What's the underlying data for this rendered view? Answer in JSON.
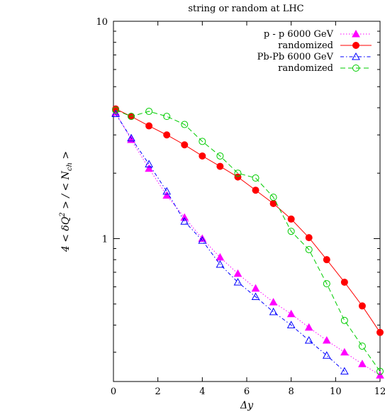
{
  "chart_data": {
    "type": "line",
    "title": "string or random at LHC",
    "xlabel": "Δy",
    "ylabel": "4 < δQ² > / < N_ch >",
    "ylabel_parts": {
      "pre": "4 < δQ",
      "sup": "2",
      "mid": " > / < N",
      "sub": "ch",
      "post": " >"
    },
    "xlim": [
      0,
      12
    ],
    "ylim": [
      0.22,
      10
    ],
    "yscale": "log",
    "xticks": [
      "0",
      "2",
      "4",
      "6",
      "8",
      "10",
      "12"
    ],
    "xtick_values": [
      0,
      2,
      4,
      6,
      8,
      10,
      12
    ],
    "yticks": [
      "1",
      "10"
    ],
    "ytick_values": [
      1,
      10
    ],
    "legend_position": "top-right",
    "series": [
      {
        "name": "p - p 6000 GeV",
        "color": "#ff00ff",
        "marker": "triangle-filled",
        "line": "dotted",
        "x": [
          0.1,
          0.8,
          1.6,
          2.4,
          3.2,
          4.0,
          4.8,
          5.6,
          6.4,
          7.2,
          8.0,
          8.8,
          9.6,
          10.4,
          11.2,
          12.0
        ],
        "y": [
          3.8,
          2.85,
          2.1,
          1.58,
          1.25,
          1.0,
          0.82,
          0.69,
          0.59,
          0.51,
          0.45,
          0.39,
          0.34,
          0.3,
          0.265,
          0.235
        ]
      },
      {
        "name": "randomized",
        "color": "#ff0000",
        "marker": "circle-filled",
        "line": "solid",
        "x": [
          0.1,
          0.8,
          1.6,
          2.4,
          3.2,
          4.0,
          4.8,
          5.6,
          6.4,
          7.2,
          8.0,
          8.8,
          9.6,
          10.4,
          11.2,
          12.0
        ],
        "y": [
          3.95,
          3.65,
          3.3,
          3.0,
          2.7,
          2.4,
          2.15,
          1.92,
          1.67,
          1.45,
          1.23,
          1.01,
          0.8,
          0.63,
          0.49,
          0.37
        ]
      },
      {
        "name": "Pb-Pb 6000 GeV",
        "color": "#0000ff",
        "marker": "triangle-open",
        "line": "dash-dot",
        "x": [
          0.1,
          0.8,
          1.6,
          2.4,
          3.2,
          4.0,
          4.8,
          5.6,
          6.4,
          7.2,
          8.0,
          8.8,
          9.6,
          10.4
        ],
        "y": [
          3.75,
          2.9,
          2.2,
          1.65,
          1.2,
          0.98,
          0.76,
          0.63,
          0.54,
          0.46,
          0.4,
          0.34,
          0.29,
          0.245
        ]
      },
      {
        "name": "randomized",
        "color": "#00cc00",
        "marker": "circle-open",
        "line": "dashed",
        "x": [
          0.1,
          0.8,
          1.6,
          2.4,
          3.2,
          4.0,
          4.8,
          5.6,
          6.4,
          7.2,
          8.0,
          8.8,
          9.6,
          10.4,
          11.2,
          12.0
        ],
        "y": [
          3.9,
          3.65,
          3.85,
          3.65,
          3.35,
          2.8,
          2.4,
          2.0,
          1.9,
          1.55,
          1.08,
          0.89,
          0.62,
          0.42,
          0.32,
          0.245
        ]
      }
    ]
  }
}
